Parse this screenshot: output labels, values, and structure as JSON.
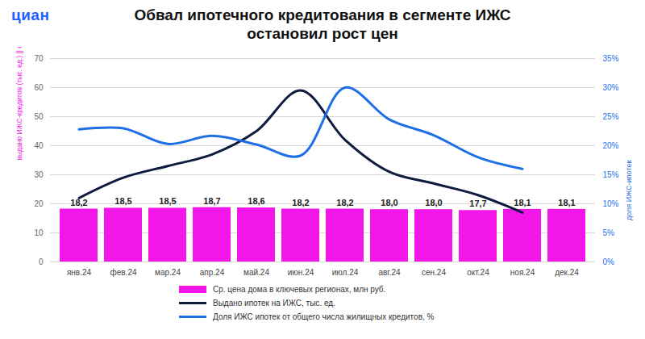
{
  "chart_data": {
    "type": "bar",
    "logo": "циан",
    "title": "Обвал ипотечного кредитования в сегменте ИЖС\nостановил рост цен",
    "y_label": "выдано ИЖС-кредитов (тыс. ед.) || ср. цена дома, млн руб",
    "y2_label": "доля ИЖС-ипотек",
    "categories": [
      "янв.24",
      "фев.24",
      "мар.24",
      "апр.24",
      "май.24",
      "июн.24",
      "июл.24",
      "авг.24",
      "сен.24",
      "окт.24",
      "ноя.24",
      "дек.24"
    ],
    "series": [
      {
        "name": "Ср. цена дома в ключевых регионах, млн руб.",
        "type": "bar",
        "color": "#f316e9",
        "values": [
          18.2,
          18.5,
          18.5,
          18.7,
          18.6,
          18.2,
          18.2,
          18.0,
          18.0,
          17.7,
          18.1,
          18.1
        ],
        "value_labels": [
          "18,2",
          "18,5",
          "18,5",
          "18,7",
          "18,6",
          "18,2",
          "18,2",
          "18,0",
          "18,0",
          "17,7",
          "18,1",
          "18,1"
        ]
      },
      {
        "name": "Выдано ипотек на ИЖС, тыс. ед.",
        "type": "line",
        "color": "#0d1b3e",
        "values": [
          22,
          29,
          33,
          37,
          45,
          59,
          42,
          31,
          27,
          23,
          17,
          null
        ]
      },
      {
        "name": "Доля ИЖС ипотек от общего числа жилищных кредитов, %",
        "type": "line",
        "color": "#1e6fe6",
        "axis": "y2",
        "values": [
          22.8,
          23,
          20.3,
          21.7,
          20.2,
          18.3,
          30,
          24.5,
          21.8,
          18,
          16,
          null
        ]
      }
    ],
    "ylim": [
      0,
      70
    ],
    "yticks": [
      0,
      10,
      20,
      30,
      40,
      50,
      60,
      70
    ],
    "y2lim": [
      0,
      35
    ],
    "y2ticks": [
      {
        "value": 0,
        "label": "0%"
      },
      {
        "value": 5,
        "label": "5%"
      },
      {
        "value": 10,
        "label": "10%"
      },
      {
        "value": 15,
        "label": "15%"
      },
      {
        "value": 20,
        "label": "20%"
      },
      {
        "value": 25,
        "label": "25%"
      },
      {
        "value": 30,
        "label": "30%"
      },
      {
        "value": 35,
        "label": "35%"
      }
    ],
    "grid": true,
    "data_labels": true,
    "legend": "bottom"
  }
}
